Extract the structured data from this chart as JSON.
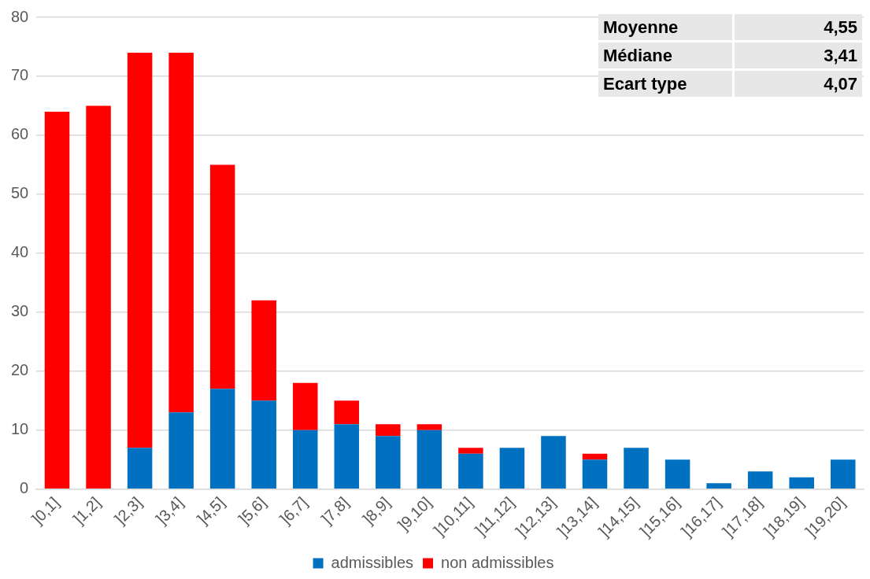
{
  "chart_data": {
    "type": "bar",
    "stacked": true,
    "categories": [
      "]0,1]",
      "]1,2]",
      "]2,3]",
      "]3,4]",
      "]4,5]",
      "]5,6]",
      "]6,7]",
      "]7,8]",
      "]8,9]",
      "]9,10]",
      "]10,11]",
      "]11,12]",
      "]12,13]",
      "]13,14]",
      "]14,15]",
      "]15,16]",
      "]16,17]",
      "]17,18]",
      "]18,19]",
      "]19,20]"
    ],
    "series": [
      {
        "name": "admissibles",
        "color": "#0070c0",
        "values": [
          0,
          0,
          7,
          13,
          17,
          15,
          10,
          11,
          9,
          10,
          6,
          7,
          9,
          5,
          7,
          5,
          1,
          3,
          2,
          5
        ]
      },
      {
        "name": "non admissibles",
        "color": "#ff0000",
        "values": [
          64,
          65,
          67,
          61,
          38,
          17,
          8,
          4,
          2,
          1,
          1,
          0,
          0,
          1,
          0,
          0,
          0,
          0,
          0,
          0
        ]
      }
    ],
    "ylim": [
      0,
      80
    ],
    "yticks": [
      0,
      10,
      20,
      30,
      40,
      50,
      60,
      70,
      80
    ],
    "grid": "y",
    "legend": "bottom",
    "annotations": [
      "Moyenne",
      "4,55",
      "Médiane",
      "3,41",
      "Ecart type",
      "4,07"
    ]
  }
}
